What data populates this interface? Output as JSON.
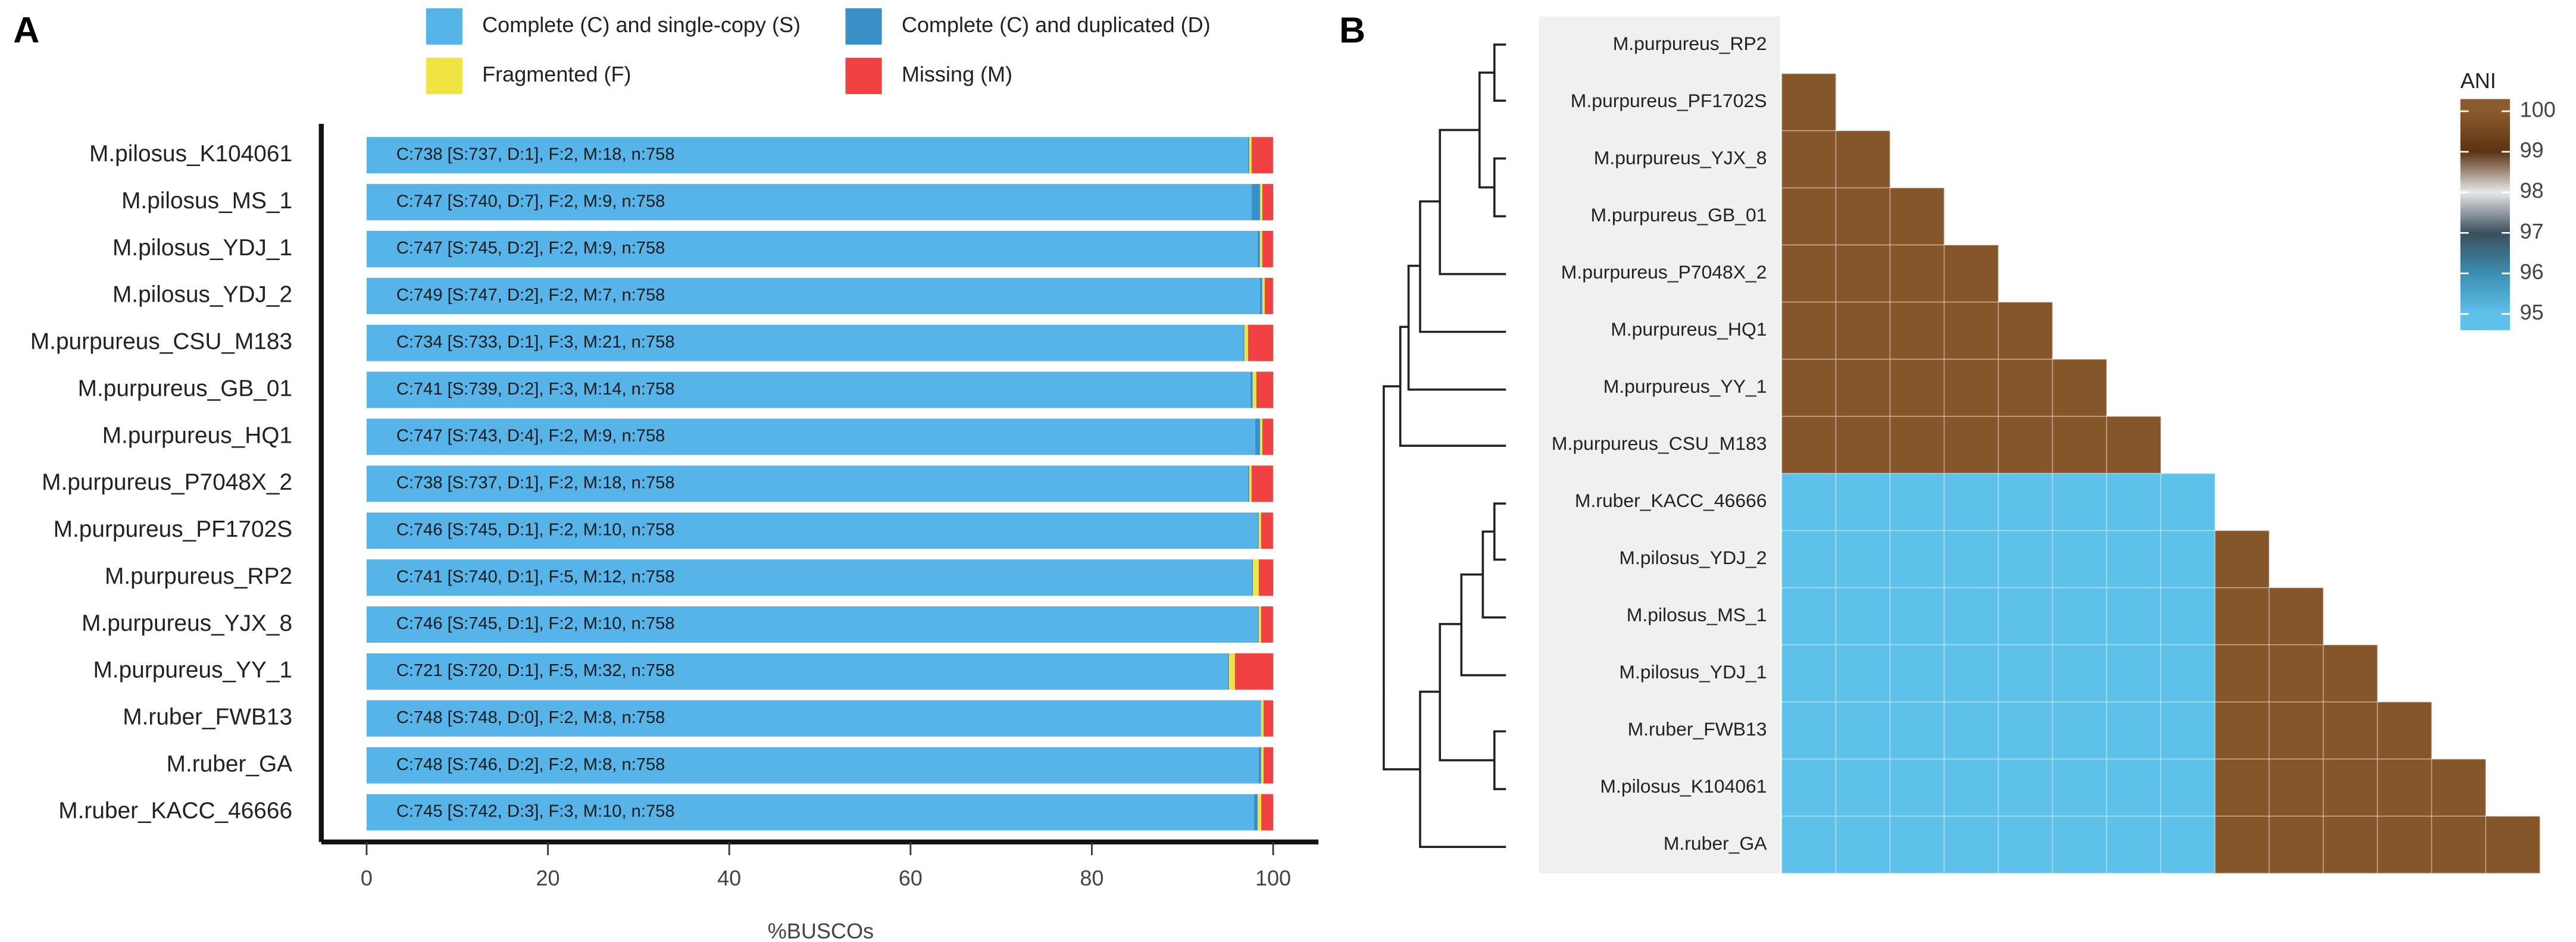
{
  "chart_data": [
    {
      "type": "bar",
      "panel_label": "A",
      "orientation": "horizontal",
      "stacked": true,
      "categories": [
        "M.pilosus_K104061",
        "M.pilosus_MS_1",
        "M.pilosus_YDJ_1",
        "M.pilosus_YDJ_2",
        "M.purpureus_CSU_M183",
        "M.purpureus_GB_01",
        "M.purpureus_HQ1",
        "M.purpureus_P7048X_2",
        "M.purpureus_PF1702S",
        "M.purpureus_RP2",
        "M.purpureus_YJX_8",
        "M.purpureus_YY_1",
        "M.ruber_FWB13",
        "M.ruber_GA",
        "M.ruber_KACC_46666"
      ],
      "series": [
        {
          "name": "Complete (C) and single-copy (S)",
          "color": "#56b4e9",
          "values": [
            97.23,
            97.63,
            98.28,
            98.55,
            96.7,
            97.49,
            98.02,
            97.23,
            98.28,
            97.63,
            98.28,
            94.99,
            98.68,
            98.42,
            97.89
          ]
        },
        {
          "name": "Complete (C) and duplicated (D)",
          "color": "#3a8fc7",
          "values": [
            0.13,
            0.92,
            0.26,
            0.26,
            0.13,
            0.26,
            0.53,
            0.13,
            0.13,
            0.13,
            0.13,
            0.13,
            0,
            0.26,
            0.4
          ]
        },
        {
          "name": "Fragmented (F)",
          "color": "#f0e442",
          "values": [
            0.26,
            0.26,
            0.26,
            0.26,
            0.4,
            0.4,
            0.26,
            0.26,
            0.26,
            0.66,
            0.26,
            0.66,
            0.26,
            0.26,
            0.4
          ]
        },
        {
          "name": "Missing (M)",
          "color": "#f04242",
          "values": [
            2.37,
            1.19,
            1.19,
            0.92,
            2.77,
            1.85,
            1.19,
            2.37,
            1.32,
            1.58,
            1.32,
            4.22,
            1.06,
            1.06,
            1.32
          ]
        }
      ],
      "bar_labels": [
        "C:738 [S:737, D:1], F:2, M:18, n:758",
        "C:747 [S:740, D:7], F:2, M:9, n:758",
        "C:747 [S:745, D:2], F:2, M:9, n:758",
        "C:749 [S:747, D:2], F:2, M:7, n:758",
        "C:734 [S:733, D:1], F:3, M:21, n:758",
        "C:741 [S:739, D:2], F:3, M:14, n:758",
        "C:747 [S:743, D:4], F:2, M:9, n:758",
        "C:738 [S:737, D:1], F:2, M:18, n:758",
        "C:746 [S:745, D:1], F:2, M:10, n:758",
        "C:741 [S:740, D:1], F:5, M:12, n:758",
        "C:746 [S:745, D:1], F:2, M:10, n:758",
        "C:721 [S:720, D:1], F:5, M:32, n:758",
        "C:748 [S:748, D:0], F:2, M:8, n:758",
        "C:748 [S:746, D:2], F:2, M:8, n:758",
        "C:745 [S:742, D:3], F:3, M:10, n:758"
      ],
      "xlim": [
        -5,
        105
      ],
      "xticks": [
        0,
        20,
        40,
        60,
        80,
        100
      ],
      "xlabel": "%BUSCOs"
    },
    {
      "type": "heatmap",
      "panel_label": "B",
      "rows": [
        "M.purpureus_RP2",
        "M.purpureus_PF1702S",
        "M.purpureus_YJX_8",
        "M.purpureus_GB_01",
        "M.purpureus_P7048X_2",
        "M.purpureus_HQ1",
        "M.purpureus_YY_1",
        "M.purpureus_CSU_M183",
        "M.ruber_KACC_46666",
        "M.pilosus_YDJ_2",
        "M.pilosus_MS_1",
        "M.pilosus_YDJ_1",
        "M.ruber_FWB13",
        "M.pilosus_K104061",
        "M.ruber_GA"
      ],
      "matrix": [
        [],
        [
          99.9
        ],
        [
          99.9,
          99.9
        ],
        [
          99.9,
          99.9,
          99.9
        ],
        [
          99.9,
          99.9,
          99.9,
          99.9
        ],
        [
          99.9,
          99.9,
          99.9,
          99.9,
          99.9
        ],
        [
          99.9,
          99.9,
          99.9,
          99.9,
          99.9,
          99.9
        ],
        [
          99.9,
          99.9,
          99.9,
          99.9,
          99.9,
          99.9,
          99.9
        ],
        [
          95.0,
          95.0,
          95.0,
          95.0,
          95.0,
          95.0,
          95.0,
          95.0
        ],
        [
          95.0,
          95.0,
          95.0,
          95.0,
          95.0,
          95.0,
          95.0,
          95.0,
          99.9
        ],
        [
          95.0,
          95.0,
          95.0,
          95.0,
          95.0,
          95.0,
          95.0,
          95.0,
          99.9,
          99.9
        ],
        [
          95.0,
          95.0,
          95.0,
          95.0,
          95.0,
          95.0,
          95.0,
          95.0,
          99.9,
          99.9,
          99.9
        ],
        [
          95.0,
          95.0,
          95.0,
          95.0,
          95.0,
          95.0,
          95.0,
          95.0,
          99.9,
          99.9,
          99.9,
          99.9
        ],
        [
          95.0,
          95.0,
          95.0,
          95.0,
          95.0,
          95.0,
          95.0,
          95.0,
          99.9,
          99.9,
          99.9,
          99.9,
          99.9
        ],
        [
          95.0,
          95.0,
          95.0,
          95.0,
          95.0,
          95.0,
          95.0,
          95.0,
          99.9,
          99.9,
          99.9,
          99.9,
          99.9,
          99.9
        ]
      ],
      "colorbar": {
        "title": "ANI",
        "lim": [
          94.6,
          100.3
        ],
        "ticks": [
          95,
          96,
          97,
          98,
          99,
          100
        ],
        "colors": [
          "#5ec1ea",
          "#3c8db0",
          "#3a4f5c",
          "#e8e8e8",
          "#5c3414",
          "#8b5a2e"
        ]
      }
    }
  ]
}
